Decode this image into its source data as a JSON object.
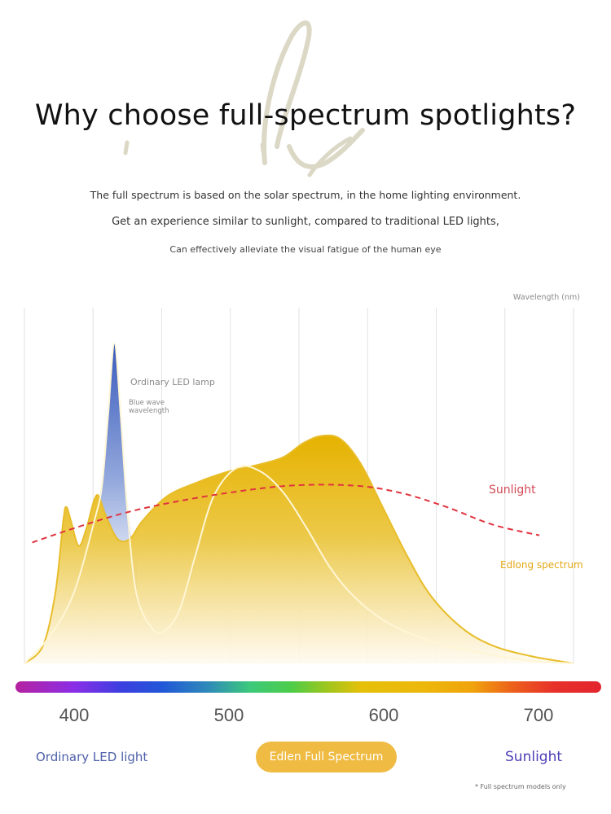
{
  "header": {
    "title": "Why choose full-spectrum spotlights?",
    "subtitle_lines": [
      "The full spectrum is based on the solar spectrum, in the home lighting environment.",
      "Get an experience similar to sunlight, compared to traditional LED lights,",
      "Can effectively alleviate the visual fatigue of the human eye"
    ]
  },
  "colors": {
    "edlong": "#e6b40a",
    "led_blue": "#3f5fbd",
    "sunlight": "#e0343f",
    "gridline": "#e2e2e2",
    "badge": "#efbb42"
  },
  "chart_data": {
    "type": "area",
    "title": "",
    "xlabel": "Wavelength (nm)",
    "ylabel": "",
    "xlim": [
      368,
      722
    ],
    "ylim": [
      0,
      1
    ],
    "grid": "vertical",
    "x_ticks": [
      400,
      500,
      600,
      700
    ],
    "annotations": [
      "Ordinary LED lamp",
      "Blue wave wavelength",
      "Sunlight",
      "Edlong spectrum"
    ],
    "series": [
      {
        "name": "Edlong spectrum",
        "style": "filled-area",
        "points": [
          [
            368,
            0.0
          ],
          [
            380,
            0.05
          ],
          [
            388,
            0.2
          ],
          [
            393,
            0.4
          ],
          [
            395,
            0.44
          ],
          [
            398,
            0.4
          ],
          [
            403,
            0.33
          ],
          [
            408,
            0.38
          ],
          [
            413,
            0.46
          ],
          [
            416,
            0.47
          ],
          [
            420,
            0.42
          ],
          [
            428,
            0.35
          ],
          [
            436,
            0.35
          ],
          [
            444,
            0.4
          ],
          [
            460,
            0.47
          ],
          [
            480,
            0.51
          ],
          [
            500,
            0.54
          ],
          [
            520,
            0.56
          ],
          [
            535,
            0.58
          ],
          [
            548,
            0.62
          ],
          [
            560,
            0.64
          ],
          [
            572,
            0.63
          ],
          [
            585,
            0.56
          ],
          [
            600,
            0.43
          ],
          [
            615,
            0.3
          ],
          [
            630,
            0.19
          ],
          [
            650,
            0.1
          ],
          [
            670,
            0.05
          ],
          [
            695,
            0.02
          ],
          [
            722,
            0.0
          ]
        ]
      },
      {
        "name": "Ordinary LED lamp",
        "style": "line-with-blue-peak",
        "points": [
          [
            368,
            0.0
          ],
          [
            385,
            0.08
          ],
          [
            400,
            0.2
          ],
          [
            413,
            0.4
          ],
          [
            418,
            0.5
          ],
          [
            422,
            0.7
          ],
          [
            426,
            0.9
          ],
          [
            430,
            0.7
          ],
          [
            434,
            0.45
          ],
          [
            440,
            0.2
          ],
          [
            450,
            0.1
          ],
          [
            458,
            0.09
          ],
          [
            468,
            0.15
          ],
          [
            478,
            0.3
          ],
          [
            490,
            0.47
          ],
          [
            505,
            0.55
          ],
          [
            520,
            0.54
          ],
          [
            535,
            0.48
          ],
          [
            550,
            0.38
          ],
          [
            565,
            0.27
          ],
          [
            580,
            0.19
          ],
          [
            600,
            0.12
          ],
          [
            625,
            0.07
          ],
          [
            650,
            0.04
          ],
          [
            690,
            0.01
          ],
          [
            722,
            0.0
          ]
        ]
      },
      {
        "name": "Sunlight",
        "style": "dashed",
        "points": [
          [
            373,
            0.34
          ],
          [
            400,
            0.38
          ],
          [
            430,
            0.42
          ],
          [
            460,
            0.45
          ],
          [
            500,
            0.48
          ],
          [
            540,
            0.5
          ],
          [
            580,
            0.5
          ],
          [
            610,
            0.48
          ],
          [
            640,
            0.44
          ],
          [
            670,
            0.39
          ],
          [
            700,
            0.36
          ]
        ]
      }
    ],
    "spectrum_bar_ticks": [
      "400",
      "500",
      "600",
      "700"
    ]
  },
  "chart_labels": {
    "axis_title": "Wavelength (nm)",
    "led_lamp": "Ordinary LED lamp",
    "blue_wave": "Blue wave wavelength",
    "sunlight": "Sunlight",
    "edlong": "Edlong spectrum"
  },
  "legend": {
    "ordinary_led": "Ordinary LED light",
    "edlen": "Edlen Full Spectrum",
    "sunlight": "Sunlight"
  },
  "footnote": "* Full spectrum models only"
}
